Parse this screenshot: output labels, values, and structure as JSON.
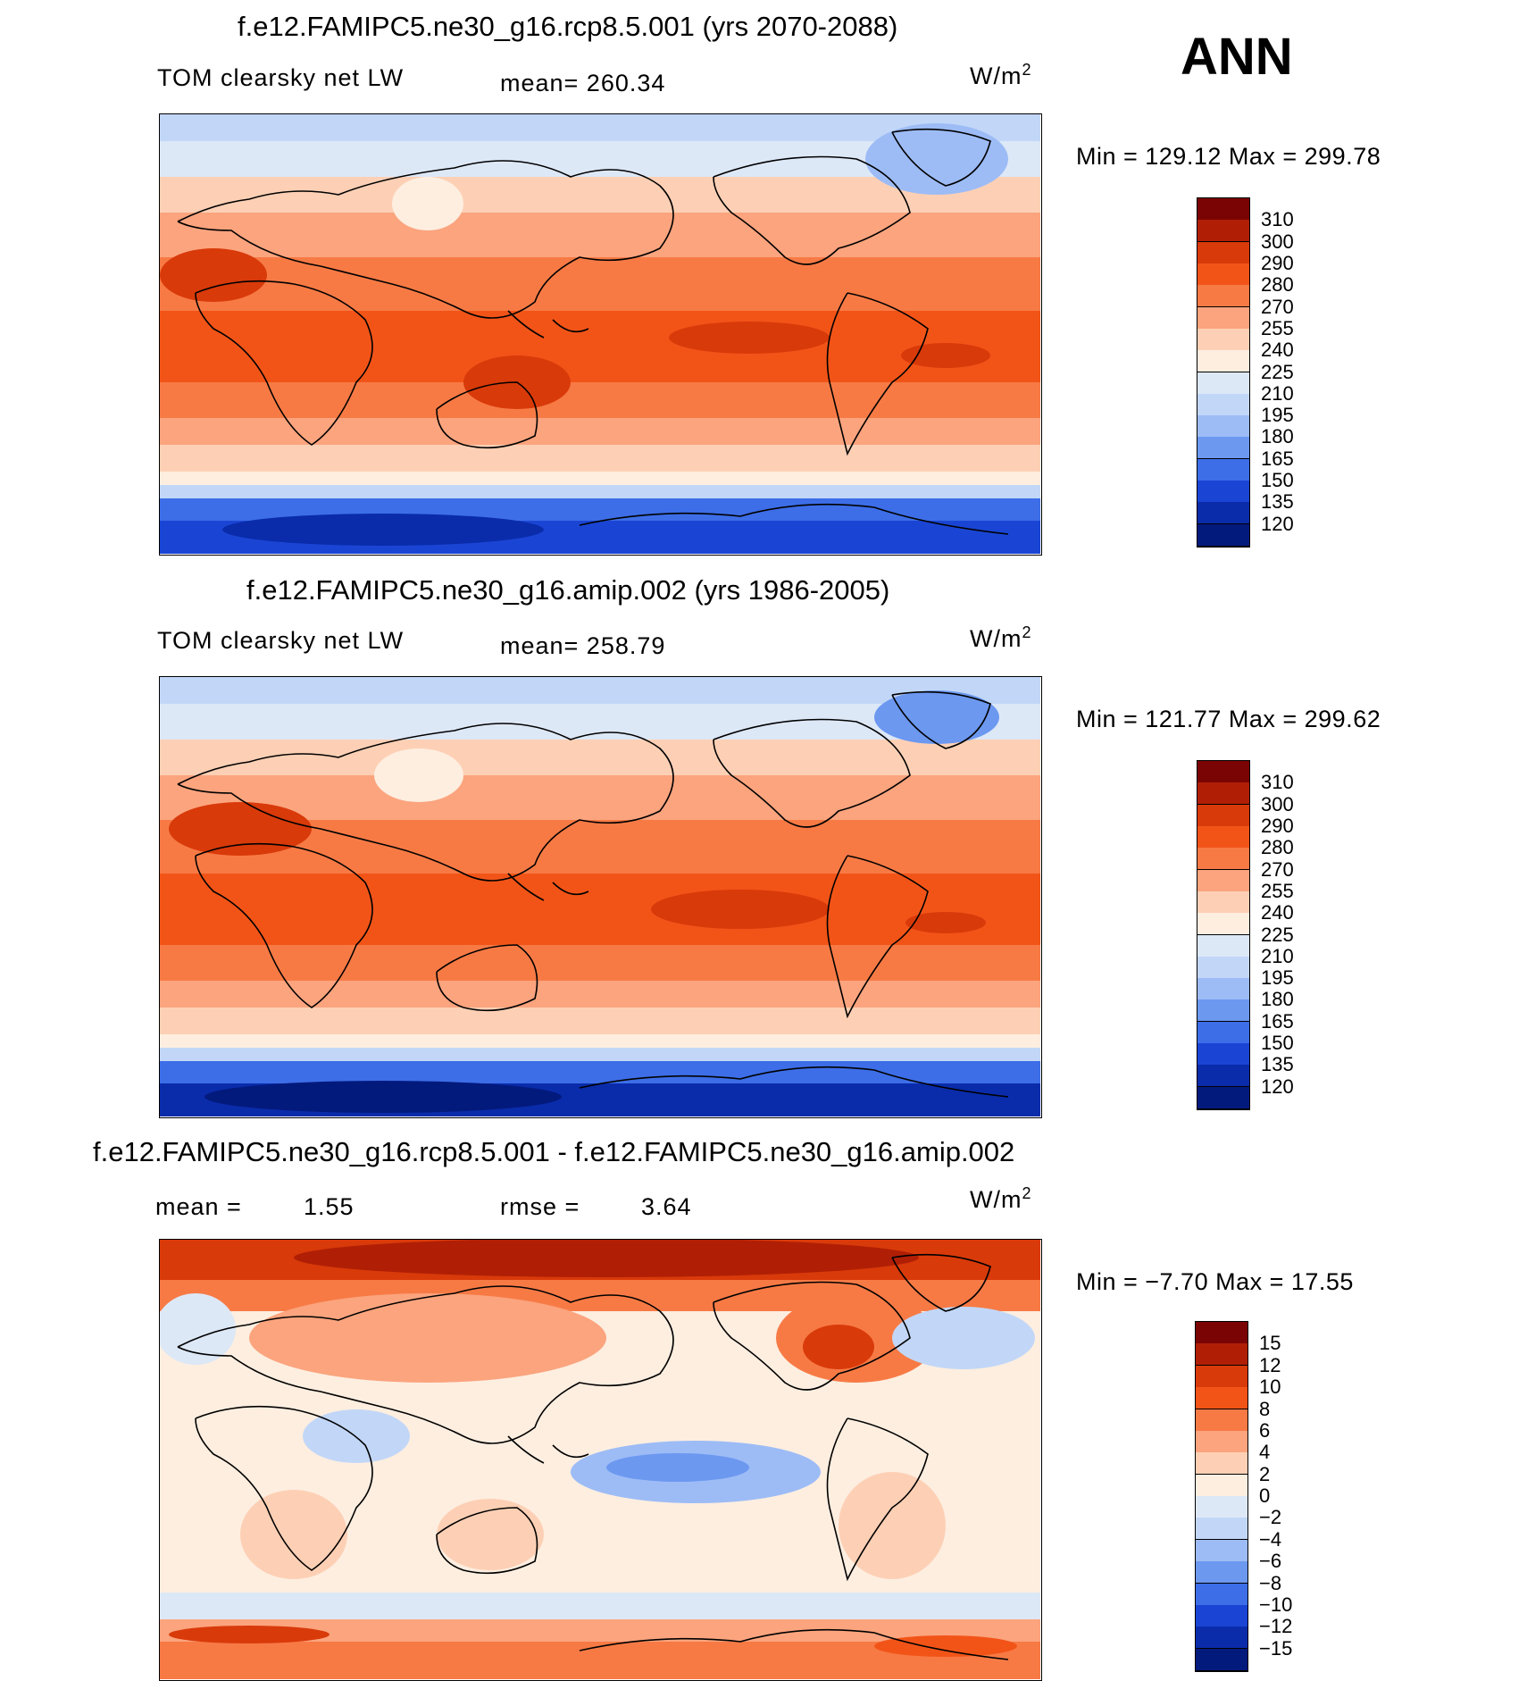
{
  "season": "ANN",
  "units_base": "W/m",
  "units_exp": "2",
  "panel1": {
    "title": "f.e12.FAMIPC5.ne30_g16.rcp8.5.001 (yrs 2070-2088)",
    "variable": "TOM clearsky net LW",
    "mean": "mean= 260.34",
    "minmax": "Min = 129.12 Max = 299.78"
  },
  "panel2": {
    "title": "f.e12.FAMIPC5.ne30_g16.amip.002 (yrs 1986-2005)",
    "variable": "TOM clearsky net LW",
    "mean": "mean= 258.79",
    "minmax": "Min = 121.77 Max = 299.62"
  },
  "panel3": {
    "title": "f.e12.FAMIPC5.ne30_g16.rcp8.5.001 - f.e12.FAMIPC5.ne30_g16.amip.002",
    "mean_label": "mean =",
    "mean_value": "1.55",
    "rmse_label": "rmse =",
    "rmse_value": "3.64",
    "minmax": "Min = −7.70 Max = 17.55"
  },
  "chart_data": [
    {
      "type": "heatmap",
      "title": "f.e12.FAMIPC5.ne30_g16.rcp8.5.001 (yrs 2070-2088)",
      "variable": "TOM clearsky net LW",
      "units": "W/m2",
      "mean": 260.34,
      "min": 129.12,
      "max": 299.78,
      "colorbar_levels": [
        310,
        300,
        290,
        280,
        270,
        255,
        240,
        225,
        210,
        195,
        180,
        165,
        150,
        135,
        120
      ],
      "colorbar_labels": [
        "310",
        "300",
        "290",
        "280",
        "270",
        "255",
        "240",
        "225",
        "210",
        "195",
        "180",
        "165",
        "150",
        "135",
        "120"
      ],
      "colors": [
        "#7a0403",
        "#b01f05",
        "#d93a0a",
        "#f25418",
        "#f77a45",
        "#fba47e",
        "#fdd0b5",
        "#fdeee0",
        "#dde8f7",
        "#c2d7f7",
        "#9dbcf6",
        "#6c98f0",
        "#3d6ee8",
        "#1a45d4",
        "#0a2cab",
        "#031a7d"
      ]
    },
    {
      "type": "heatmap",
      "title": "f.e12.FAMIPC5.ne30_g16.amip.002 (yrs 1986-2005)",
      "variable": "TOM clearsky net LW",
      "units": "W/m2",
      "mean": 258.79,
      "min": 121.77,
      "max": 299.62,
      "colorbar_levels": [
        310,
        300,
        290,
        280,
        270,
        255,
        240,
        225,
        210,
        195,
        180,
        165,
        150,
        135,
        120
      ],
      "colorbar_labels": [
        "310",
        "300",
        "290",
        "280",
        "270",
        "255",
        "240",
        "225",
        "210",
        "195",
        "180",
        "165",
        "150",
        "135",
        "120"
      ],
      "colors": [
        "#7a0403",
        "#b01f05",
        "#d93a0a",
        "#f25418",
        "#f77a45",
        "#fba47e",
        "#fdd0b5",
        "#fdeee0",
        "#dde8f7",
        "#c2d7f7",
        "#9dbcf6",
        "#6c98f0",
        "#3d6ee8",
        "#1a45d4",
        "#0a2cab",
        "#031a7d"
      ]
    },
    {
      "type": "heatmap",
      "title": "f.e12.FAMIPC5.ne30_g16.rcp8.5.001 - f.e12.FAMIPC5.ne30_g16.amip.002",
      "units": "W/m2",
      "mean": 1.55,
      "rmse": 3.64,
      "min": -7.7,
      "max": 17.55,
      "colorbar_levels": [
        15,
        12,
        10,
        8,
        6,
        4,
        2,
        0,
        -2,
        -4,
        -6,
        -8,
        -10,
        -12,
        -15
      ],
      "colorbar_labels": [
        "15",
        "12",
        "10",
        "8",
        "6",
        "4",
        "2",
        "0",
        "−2",
        "−4",
        "−6",
        "−8",
        "−10",
        "−12",
        "−15"
      ],
      "colors": [
        "#7a0403",
        "#b01f05",
        "#d93a0a",
        "#f25418",
        "#f77a45",
        "#fba47e",
        "#fdd0b5",
        "#fdeee0",
        "#dde8f7",
        "#c2d7f7",
        "#9dbcf6",
        "#6c98f0",
        "#3d6ee8",
        "#1a45d4",
        "#0a2cab",
        "#031a7d"
      ]
    }
  ]
}
